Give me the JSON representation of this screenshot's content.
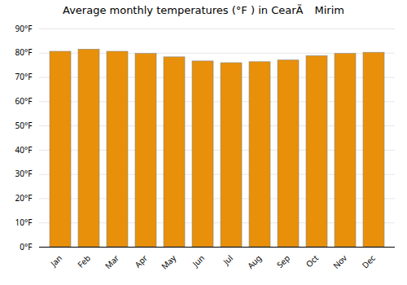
{
  "chart_data": {
    "type": "bar",
    "title": "Average monthly temperatures (°F ) in CearÃ Mirim",
    "categories": [
      "Jan",
      "Feb",
      "Mar",
      "Apr",
      "May",
      "Jun",
      "Jul",
      "Aug",
      "Sep",
      "Oct",
      "Nov",
      "Dec"
    ],
    "values": [
      80.6,
      81.5,
      80.6,
      79.7,
      78.3,
      76.6,
      75.9,
      76.3,
      77.0,
      78.8,
      79.7,
      80.2
    ],
    "color": "#E8900A",
    "ylim": [
      0,
      90
    ],
    "yticks": [
      {
        "value": 0,
        "label": "0°F"
      },
      {
        "value": 10,
        "label": "10°F"
      },
      {
        "value": 20,
        "label": "20°F"
      },
      {
        "value": 30,
        "label": "30°F"
      },
      {
        "value": 40,
        "label": "40°F"
      },
      {
        "value": 50,
        "label": "50°F"
      },
      {
        "value": 60,
        "label": "60°F"
      },
      {
        "value": 70,
        "label": "70°F"
      },
      {
        "value": 80,
        "label": "80°F"
      },
      {
        "value": 90,
        "label": "90°F"
      }
    ],
    "grid": true
  }
}
